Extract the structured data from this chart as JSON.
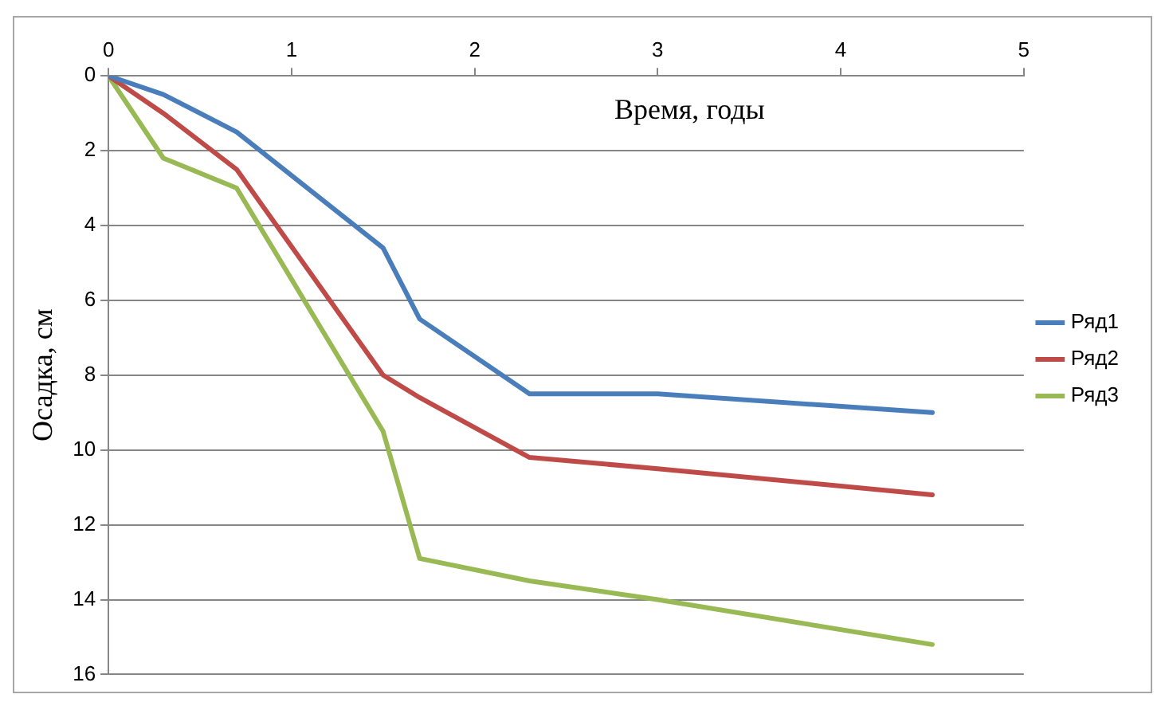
{
  "chart_data": {
    "type": "line",
    "xlabel": "Время, годы",
    "ylabel": "Осадка, см",
    "xlim": [
      0,
      5
    ],
    "xticks": [
      0,
      1,
      2,
      3,
      4,
      5
    ],
    "ylim": [
      16,
      0
    ],
    "yticks": [
      0,
      2,
      4,
      6,
      8,
      10,
      12,
      14,
      16
    ],
    "grid": "y",
    "legend": "right",
    "marker": "none",
    "line_style": "solid",
    "series": [
      {
        "name": "Ряд1",
        "color": "#4a7ebb",
        "x": [
          0,
          0.3,
          0.7,
          1.5,
          1.7,
          2.3,
          3,
          4.5
        ],
        "values": [
          0,
          0.5,
          1.5,
          4.6,
          6.5,
          8.5,
          8.5,
          9
        ]
      },
      {
        "name": "Ряд2",
        "color": "#be4b48",
        "x": [
          0,
          0.3,
          0.7,
          1.5,
          1.7,
          2.3,
          3,
          4.5
        ],
        "values": [
          0,
          1,
          2.5,
          8,
          8.6,
          10.2,
          10.5,
          11.2
        ]
      },
      {
        "name": "Ряд3",
        "color": "#98b954",
        "x": [
          0,
          0.3,
          0.7,
          1.5,
          1.7,
          2.3,
          3,
          4.5
        ],
        "values": [
          0,
          2.2,
          3,
          9.5,
          12.9,
          13.5,
          14,
          15.2
        ]
      }
    ]
  }
}
